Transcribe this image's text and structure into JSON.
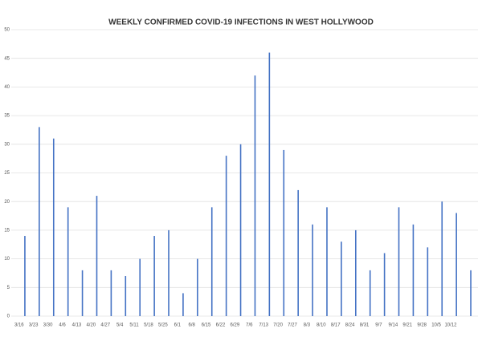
{
  "chart_data": {
    "type": "bar",
    "title": "WEEKLY CONFIRMED COVID-19 INFECTIONS IN WEST HOLLYWOOD",
    "categories": [
      "3/16",
      "3/23",
      "3/30",
      "4/6",
      "4/13",
      "4/20",
      "4/27",
      "5/4",
      "5/11",
      "5/18",
      "5/25",
      "6/1",
      "6/8",
      "6/15",
      "6/22",
      "6/29",
      "7/6",
      "7/13",
      "7/20",
      "7/27",
      "8/3",
      "8/10",
      "8/17",
      "8/24",
      "8/31",
      "9/7",
      "9/14",
      "9/21",
      "9/28",
      "10/5",
      "10/12",
      null
    ],
    "values": [
      14,
      33,
      31,
      19,
      8,
      21,
      8,
      7,
      10,
      14,
      15,
      4,
      10,
      19,
      28,
      30,
      42,
      46,
      29,
      22,
      16,
      19,
      13,
      15,
      8,
      11,
      19,
      16,
      12,
      20,
      18,
      8
    ],
    "color": "#4472c4",
    "ylim": [
      0,
      50
    ],
    "yticks": [
      0,
      5,
      10,
      15,
      20,
      25,
      30,
      35,
      40,
      45,
      50
    ],
    "grid": true
  }
}
